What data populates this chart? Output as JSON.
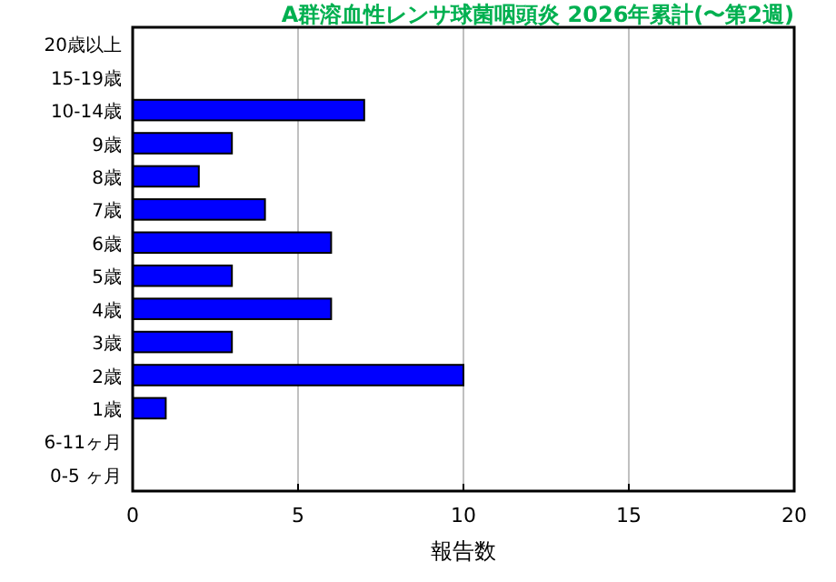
{
  "chart_data": {
    "type": "bar",
    "orientation": "horizontal",
    "title": "A群溶血性レンサ球菌咽頭炎 2026年累計(〜第2週)",
    "xlabel": "報告数",
    "categories": [
      "20歳以上",
      "15-19歳",
      "10-14歳",
      "9歳",
      "8歳",
      "7歳",
      "6歳",
      "5歳",
      "4歳",
      "3歳",
      "2歳",
      "1歳",
      "6-11ヶ月",
      "0-5 ヶ月"
    ],
    "values": [
      0,
      0,
      7,
      3,
      2,
      4,
      6,
      3,
      6,
      3,
      10,
      1,
      0,
      0
    ],
    "color": "#0000ff",
    "xlim": [
      0,
      20
    ],
    "xticks": [
      0,
      5,
      10,
      15,
      20
    ],
    "grid": "x"
  }
}
